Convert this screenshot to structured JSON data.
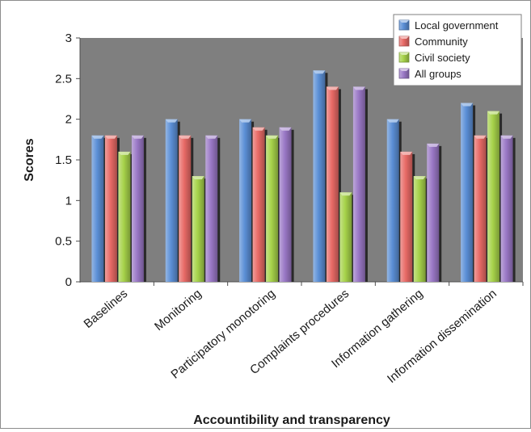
{
  "chart_data": {
    "type": "bar",
    "title": "",
    "xlabel": "Accountibility and transparency",
    "ylabel": "Scores",
    "ylim": [
      0,
      3
    ],
    "yticks": [
      0,
      0.5,
      1,
      1.5,
      2,
      2.5,
      3
    ],
    "ytick_labels": [
      "0",
      "0.5",
      "1",
      "1.5",
      "2",
      "2.5",
      "3"
    ],
    "grid": false,
    "legend_position": "top-right",
    "categories": [
      "Baselines",
      "Monitoring",
      "Participatory monotoring",
      "Complaints procedures",
      "Information gathering",
      "Information dissemination"
    ],
    "series": [
      {
        "name": "Local government",
        "color": "#5b8fd6",
        "values": [
          1.8,
          2.0,
          2.0,
          2.6,
          2.0,
          2.2
        ]
      },
      {
        "name": "Community",
        "color": "#e86a66",
        "values": [
          1.8,
          1.8,
          1.9,
          2.4,
          1.6,
          1.8
        ]
      },
      {
        "name": "Civil society",
        "color": "#a6d24a",
        "values": [
          1.6,
          1.3,
          1.8,
          1.1,
          1.3,
          2.1
        ]
      },
      {
        "name": "All groups",
        "color": "#9a78c6",
        "values": [
          1.8,
          1.8,
          1.9,
          2.4,
          1.7,
          1.8
        ]
      }
    ],
    "plot_background": "#7f7f7f"
  }
}
